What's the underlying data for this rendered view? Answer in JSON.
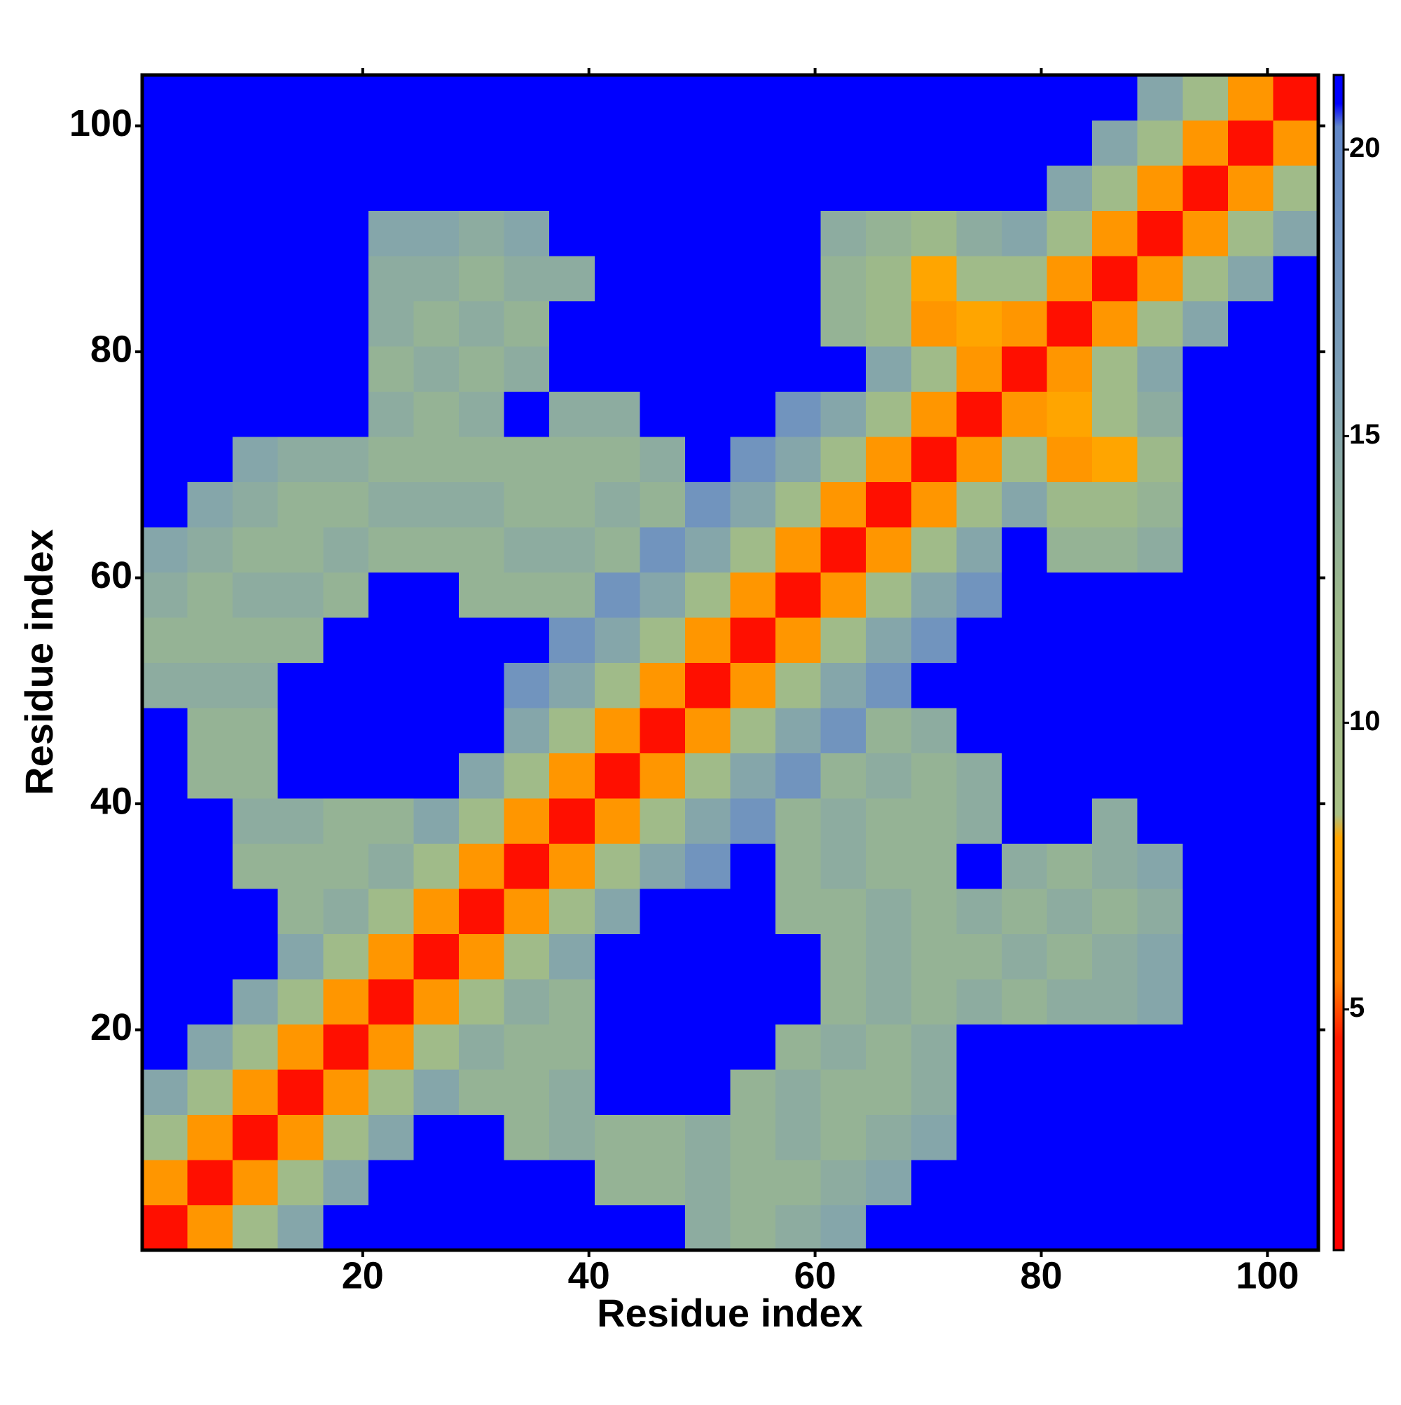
{
  "chart_data": {
    "type": "heatmap",
    "xlabel": "Residue index",
    "ylabel": "Residue index",
    "x_bins": [
      0.5,
      4.5,
      8.5,
      12.5,
      16.5,
      20.5,
      24.5,
      28.5,
      32.5,
      36.5,
      40.5,
      44.5,
      48.5,
      52.5,
      56.5,
      60.5,
      64.5,
      68.5,
      72.5,
      76.5,
      80.5,
      84.5,
      88.5,
      92.5,
      96.5,
      100.5,
      104.5
    ],
    "y_bins": [
      0.5,
      4.5,
      8.5,
      12.5,
      16.5,
      20.5,
      24.5,
      28.5,
      32.5,
      36.5,
      40.5,
      44.5,
      48.5,
      52.5,
      56.5,
      60.5,
      64.5,
      68.5,
      72.5,
      76.5,
      80.5,
      84.5,
      88.5,
      92.5,
      96.5,
      100.5,
      104.5
    ],
    "z": [
      [
        3,
        7,
        11,
        15,
        21,
        21,
        21,
        21,
        21,
        21,
        21,
        21,
        14,
        13,
        14,
        15,
        21,
        21,
        21,
        21,
        21,
        21,
        21,
        21,
        21,
        21
      ],
      [
        7,
        3,
        7,
        11,
        15,
        21,
        21,
        21,
        21,
        21,
        13,
        13,
        14,
        13,
        13,
        14,
        15,
        21,
        21,
        21,
        21,
        21,
        21,
        21,
        21,
        21
      ],
      [
        11,
        7,
        3,
        7,
        11,
        15,
        21,
        21,
        13,
        14,
        13,
        13,
        14,
        13,
        14,
        13,
        14,
        15,
        21,
        21,
        21,
        21,
        21,
        21,
        21,
        21
      ],
      [
        15,
        11,
        7,
        3,
        7,
        11,
        15,
        13,
        13,
        14,
        21,
        21,
        21,
        13,
        14,
        13,
        13,
        14,
        21,
        21,
        21,
        21,
        21,
        21,
        21,
        21
      ],
      [
        21,
        15,
        11,
        7,
        3,
        7,
        11,
        14,
        13,
        13,
        21,
        21,
        21,
        21,
        13,
        14,
        13,
        14,
        21,
        21,
        21,
        21,
        21,
        21,
        21,
        21
      ],
      [
        21,
        21,
        15,
        11,
        7,
        3,
        7,
        11,
        14,
        13,
        21,
        21,
        21,
        21,
        21,
        13,
        14,
        13,
        14,
        13,
        14,
        14,
        15,
        21,
        21,
        21
      ],
      [
        21,
        21,
        21,
        15,
        11,
        7,
        3,
        7,
        11,
        15,
        21,
        21,
        21,
        21,
        21,
        13,
        14,
        13,
        13,
        14,
        13,
        14,
        15,
        21,
        21,
        21
      ],
      [
        21,
        21,
        21,
        13,
        14,
        11,
        7,
        3,
        7,
        11,
        15,
        21,
        21,
        21,
        13,
        13,
        14,
        13,
        14,
        13,
        14,
        13,
        14,
        21,
        21,
        21
      ],
      [
        21,
        21,
        13,
        13,
        13,
        14,
        11,
        7,
        3,
        7,
        11,
        15,
        18,
        21,
        13,
        14,
        13,
        13,
        21,
        14,
        13,
        14,
        15,
        21,
        21,
        21
      ],
      [
        21,
        21,
        14,
        14,
        13,
        13,
        15,
        11,
        7,
        3,
        7,
        11,
        15,
        18,
        13,
        14,
        13,
        13,
        14,
        21,
        21,
        14,
        21,
        21,
        21,
        21
      ],
      [
        21,
        13,
        13,
        21,
        21,
        21,
        21,
        15,
        11,
        7,
        3,
        7,
        11,
        15,
        18,
        13,
        14,
        13,
        14,
        21,
        21,
        21,
        21,
        21,
        21,
        21
      ],
      [
        21,
        13,
        13,
        21,
        21,
        21,
        21,
        21,
        15,
        11,
        7,
        3,
        7,
        11,
        15,
        18,
        13,
        14,
        21,
        21,
        21,
        21,
        21,
        21,
        21,
        21
      ],
      [
        14,
        14,
        14,
        21,
        21,
        21,
        21,
        21,
        18,
        15,
        11,
        7,
        3,
        7,
        11,
        15,
        18,
        21,
        21,
        21,
        21,
        21,
        21,
        21,
        21,
        21
      ],
      [
        13,
        13,
        13,
        13,
        21,
        21,
        21,
        21,
        21,
        18,
        15,
        11,
        7,
        3,
        7,
        11,
        15,
        18,
        21,
        21,
        21,
        21,
        21,
        21,
        21,
        21
      ],
      [
        14,
        13,
        14,
        14,
        13,
        21,
        21,
        13,
        13,
        13,
        18,
        15,
        11,
        7,
        3,
        7,
        11,
        15,
        18,
        21,
        21,
        21,
        21,
        21,
        21,
        21
      ],
      [
        15,
        14,
        13,
        13,
        14,
        13,
        13,
        13,
        14,
        14,
        13,
        18,
        15,
        11,
        7,
        3,
        7,
        11,
        15,
        21,
        13,
        13,
        14,
        21,
        21,
        21
      ],
      [
        21,
        15,
        14,
        13,
        13,
        14,
        14,
        14,
        13,
        13,
        14,
        13,
        18,
        15,
        11,
        7,
        3,
        7,
        11,
        15,
        12,
        12,
        13,
        21,
        21,
        21
      ],
      [
        21,
        21,
        15,
        14,
        14,
        13,
        13,
        13,
        13,
        13,
        13,
        14,
        21,
        18,
        15,
        11,
        7,
        3,
        7,
        11,
        7,
        8,
        12,
        21,
        21,
        21
      ],
      [
        21,
        21,
        21,
        21,
        21,
        14,
        13,
        14,
        21,
        14,
        14,
        21,
        21,
        21,
        18,
        15,
        11,
        7,
        3,
        7,
        8,
        11,
        14,
        21,
        21,
        21
      ],
      [
        21,
        21,
        21,
        21,
        21,
        13,
        14,
        13,
        14,
        21,
        21,
        21,
        21,
        21,
        21,
        21,
        15,
        11,
        7,
        3,
        7,
        11,
        15,
        21,
        21,
        21
      ],
      [
        21,
        21,
        21,
        21,
        21,
        14,
        13,
        14,
        13,
        21,
        21,
        21,
        21,
        21,
        21,
        13,
        12,
        7,
        8,
        7,
        3,
        7,
        11,
        15,
        21,
        21
      ],
      [
        21,
        21,
        21,
        21,
        21,
        14,
        14,
        13,
        14,
        14,
        21,
        21,
        21,
        21,
        21,
        13,
        12,
        8,
        11,
        11,
        7,
        3,
        7,
        11,
        15,
        21
      ],
      [
        21,
        21,
        21,
        21,
        21,
        15,
        15,
        14,
        15,
        21,
        21,
        21,
        21,
        21,
        21,
        14,
        13,
        12,
        14,
        15,
        11,
        7,
        3,
        7,
        11,
        15
      ],
      [
        21,
        21,
        21,
        21,
        21,
        21,
        21,
        21,
        21,
        21,
        21,
        21,
        21,
        21,
        21,
        21,
        21,
        21,
        21,
        21,
        15,
        11,
        7,
        3,
        7,
        11
      ],
      [
        21,
        21,
        21,
        21,
        21,
        21,
        21,
        21,
        21,
        21,
        21,
        21,
        21,
        21,
        21,
        21,
        21,
        21,
        21,
        21,
        21,
        15,
        11,
        7,
        3,
        7
      ],
      [
        21,
        21,
        21,
        21,
        21,
        21,
        21,
        21,
        21,
        21,
        21,
        21,
        21,
        21,
        21,
        21,
        21,
        21,
        21,
        21,
        21,
        21,
        15,
        11,
        7,
        3
      ]
    ],
    "xlim": [
      0.5,
      104.5
    ],
    "ylim": [
      0.5,
      104.5
    ],
    "xticks": [
      20,
      40,
      60,
      80,
      100
    ],
    "yticks": [
      20,
      40,
      60,
      80,
      100
    ],
    "clim": [
      0.8,
      21.3
    ],
    "cticks": [
      5,
      10,
      15,
      20
    ],
    "colorscale": [
      [
        0.8,
        "#ff0000"
      ],
      [
        4.5,
        "#ff1a00"
      ],
      [
        5.5,
        "#ff8000"
      ],
      [
        8,
        "#ffa500"
      ],
      [
        8.4,
        "#a9c086"
      ],
      [
        12,
        "#9db98a"
      ],
      [
        16,
        "#7d9fb5"
      ],
      [
        20.4,
        "#6287c8"
      ],
      [
        20.8,
        "#0000ff"
      ],
      [
        21.3,
        "#0000ff"
      ]
    ]
  }
}
